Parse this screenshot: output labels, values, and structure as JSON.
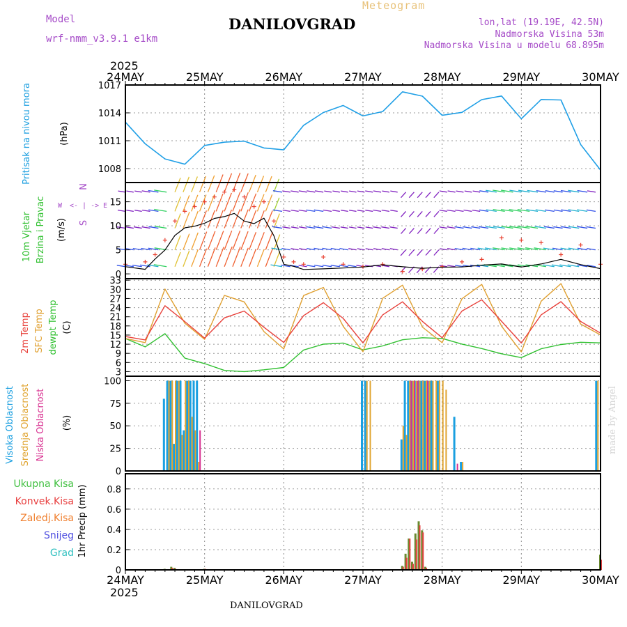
{
  "header": {
    "title": "DANILOVGRAD",
    "bottom_title": "DANILOVGRAD",
    "meteogram_label": "Meteogram",
    "model_label": "Model",
    "model_name": "wrf-nmm_v3.9.1 e1km",
    "coords": "lon,lat (19.19E, 42.5N)",
    "altitude": "Nadmorska Visina 53m",
    "model_altitude": "Nadmorska Visina u modelu 68.895m",
    "watermark": "made by Angel",
    "year_top": "2025",
    "year_bottom": "2025"
  },
  "time_axis": {
    "labels": [
      "24MAY",
      "25MAY",
      "26MAY",
      "27MAY",
      "28MAY",
      "29MAY",
      "30MAY"
    ]
  },
  "colors": {
    "pressure": "#1f9fe6",
    "t2m": "#e8403a",
    "sfc": "#e0a030",
    "dewpt": "#30c030",
    "high_cloud": "#1a9fe0",
    "mid_cloud": "#e0a430",
    "low_cloud": "#d83090",
    "total_precip": "#40c040",
    "conv_precip": "#e84040",
    "frozen_precip": "#f08030",
    "snow": "#5050e0",
    "hail": "#30c0c0",
    "gust": "#e84030",
    "wind_speed": "#000000",
    "wind_label": "#a64cc8"
  },
  "panels": {
    "pressure": {
      "ylabel1": "Pritisak na nivou mora",
      "ylabel2": "(hPa)",
      "ticks": [
        "1017",
        "1014",
        "1011",
        "1008"
      ]
    },
    "wind": {
      "ylabel1": "10m Vjetar",
      "ylabel2": "Brzina i Pravac",
      "ylabel3": "(m/s)",
      "ticks": [
        "15",
        "10",
        "5",
        "0"
      ],
      "compass_w": "W",
      "compass_e": "E",
      "compass_n": "N",
      "compass_s": "S",
      "compass_arrows": "<- | ->"
    },
    "temperature": {
      "ylabel1": "2m Temp",
      "ylabel2": "SFC Temp",
      "ylabel3": "dewpt Temp",
      "ylabel4": "(C)",
      "ticks": [
        "33",
        "30",
        "27",
        "24",
        "21",
        "18",
        "15",
        "12",
        "9",
        "6",
        "3"
      ]
    },
    "cloud": {
      "ylabel1": "Visoka Oblacnost",
      "ylabel2": "Srednja Oblacnost",
      "ylabel3": "Niska Oblacnost",
      "ylabel4": "(%)",
      "ticks": [
        "100",
        "75",
        "50",
        "25",
        "0"
      ]
    },
    "precip": {
      "ylabel": "1hr Precip (mm)",
      "legend": [
        "Ukupna Kisa",
        "Konvek.Kisa",
        "Zaledj.Kisa",
        "Snijeg",
        "Grad"
      ],
      "ticks": [
        "0.8",
        "0.6",
        "0.4",
        "0.2",
        "0"
      ]
    }
  },
  "chart_data": [
    {
      "type": "line",
      "panel": "pressure",
      "ylabel": "Pritisak na nivou mora (hPa)",
      "ylim": [
        1006.5,
        1017
      ],
      "x_hours": [
        0,
        6,
        12,
        18,
        24,
        30,
        36,
        42,
        48,
        54,
        60,
        66,
        72,
        78,
        84,
        90,
        96,
        102,
        108,
        114,
        120,
        126,
        132,
        138,
        144
      ],
      "series": [
        {
          "values": [
            1013,
            1010.7,
            1009.0,
            1008.5,
            1010.5,
            1010.8,
            1011.0,
            1010.2,
            1010.0,
            1012.7,
            1014.0,
            1014.8,
            1013.7,
            1014.1,
            1016.3,
            1015.8,
            1013.7,
            1014.1,
            1015.4,
            1015.8,
            1013.4,
            1015.4,
            1015.4,
            1010.6,
            1007.8
          ]
        }
      ]
    },
    {
      "type": "line",
      "panel": "wind",
      "ylabel": "10m Vjetar Brzina i Pravac (m/s)",
      "ylim": [
        -1,
        19
      ],
      "x_hours": [
        0,
        6,
        9,
        12,
        15,
        18,
        21,
        24,
        27,
        30,
        33,
        36,
        39,
        42,
        45,
        48,
        51,
        54,
        60,
        66,
        72,
        78,
        84,
        90,
        96,
        102,
        108,
        114,
        120,
        126,
        132,
        138,
        144
      ],
      "series": [
        {
          "values": [
            1.5,
            1.0,
            3.0,
            5.0,
            8.0,
            9.5,
            10.0,
            10.5,
            11.5,
            12.0,
            12.5,
            11.0,
            10.5,
            11.5,
            8.0,
            2.0,
            1.5,
            1.0,
            1.0,
            1.2,
            1.5,
            1.8,
            1.5,
            1.2,
            1.3,
            1.5,
            1.8,
            2.0,
            1.5,
            2.0,
            3.0,
            2.0,
            1.0
          ]
        },
        {
          "values": [
            2.0,
            2.5,
            4.0,
            7.0,
            11.0,
            13.0,
            14.0,
            15.0,
            16.0,
            17.0,
            17.5,
            16.0,
            14.0,
            15.0,
            11.0,
            3.5,
            2.5,
            2.0,
            3.5,
            2.0,
            1.5,
            2.0,
            0.5,
            1.0,
            1.5,
            2.5,
            3.0,
            7.5,
            7.0,
            6.5,
            4.0,
            6.0,
            2.0
          ]
        }
      ]
    },
    {
      "type": "line",
      "panel": "temperature",
      "ylabel": "Temp (C)",
      "ylim": [
        1.5,
        33.5
      ],
      "x_hours": [
        0,
        6,
        12,
        18,
        24,
        30,
        36,
        42,
        48,
        54,
        60,
        66,
        72,
        78,
        84,
        90,
        96,
        102,
        108,
        114,
        120,
        126,
        132,
        138,
        144
      ],
      "series": [
        {
          "values": [
            14.5,
            13.5,
            24.5,
            19.5,
            14.0,
            20.5,
            23.0,
            17.5,
            12.5,
            21.5,
            25.5,
            20.5,
            12.5,
            21.5,
            26.0,
            19.5,
            14.0,
            23.0,
            26.5,
            19.5,
            12.5,
            21.5,
            26.0,
            19.5,
            15.5
          ]
        },
        {
          "values": [
            14.0,
            12.5,
            30.0,
            19.0,
            13.5,
            28.0,
            26.0,
            16.0,
            10.5,
            28.0,
            30.5,
            18.0,
            9.5,
            27.0,
            31.5,
            17.5,
            12.5,
            27.0,
            31.5,
            18.0,
            9.5,
            26.0,
            32.0,
            18.5,
            15.0
          ]
        },
        {
          "values": [
            14.0,
            11.0,
            15.5,
            7.5,
            5.5,
            3.5,
            3.0,
            3.5,
            4.5,
            10.0,
            12.0,
            12.5,
            10.0,
            11.5,
            13.5,
            14.0,
            14.0,
            12.0,
            10.5,
            9.0,
            7.5,
            10.5,
            12.0,
            12.5,
            12.5
          ]
        }
      ]
    },
    {
      "type": "bar",
      "panel": "cloud",
      "ylabel": "Oblacnost (%)",
      "ylim": [
        0,
        105
      ],
      "x_hours": [
        12,
        13,
        14,
        15,
        16,
        17,
        18,
        19,
        20,
        21,
        22,
        72,
        73,
        74,
        84,
        85,
        86,
        87,
        88,
        89,
        90,
        91,
        92,
        93,
        94,
        95,
        96,
        97,
        100,
        102,
        143
      ],
      "series": [
        {
          "name": "Visoka Oblacnost",
          "values": [
            80,
            100,
            100,
            30,
            100,
            100,
            45,
            100,
            100,
            100,
            100,
            100,
            100,
            0,
            35,
            100,
            100,
            100,
            100,
            100,
            100,
            100,
            100,
            100,
            0,
            100,
            0,
            0,
            60,
            10,
            100
          ]
        },
        {
          "name": "Srednja Oblacnost",
          "values": [
            0,
            100,
            100,
            100,
            100,
            40,
            100,
            100,
            60,
            45,
            10,
            0,
            100,
            100,
            50,
            40,
            100,
            100,
            100,
            100,
            100,
            100,
            100,
            100,
            100,
            100,
            100,
            90,
            0,
            10,
            100
          ]
        },
        {
          "name": "Niska Oblacnost",
          "values": [
            0,
            0,
            0,
            0,
            0,
            0,
            0,
            0,
            0,
            0,
            45,
            0,
            0,
            0,
            0,
            0,
            100,
            100,
            100,
            0,
            0,
            100,
            0,
            0,
            0,
            0,
            0,
            0,
            8,
            0,
            0
          ]
        }
      ]
    },
    {
      "type": "bar",
      "panel": "precip",
      "ylabel": "1hr Precip (mm)",
      "ylim": [
        0,
        0.95
      ],
      "x_hours": [
        12,
        14,
        15,
        24,
        84,
        85,
        86,
        87,
        88,
        89,
        90,
        91,
        144
      ],
      "series": [
        {
          "name": "Ukupna Kisa",
          "values": [
            0.01,
            0.03,
            0.02,
            0.01,
            0.04,
            0.16,
            0.31,
            0.08,
            0.36,
            0.48,
            0.39,
            0.03,
            0.15
          ]
        },
        {
          "name": "Konvek.Kisa",
          "values": [
            0,
            0.02,
            0.01,
            0.01,
            0.03,
            0.12,
            0.31,
            0.06,
            0.3,
            0.44,
            0.37,
            0.02,
            0.1
          ]
        }
      ]
    }
  ]
}
